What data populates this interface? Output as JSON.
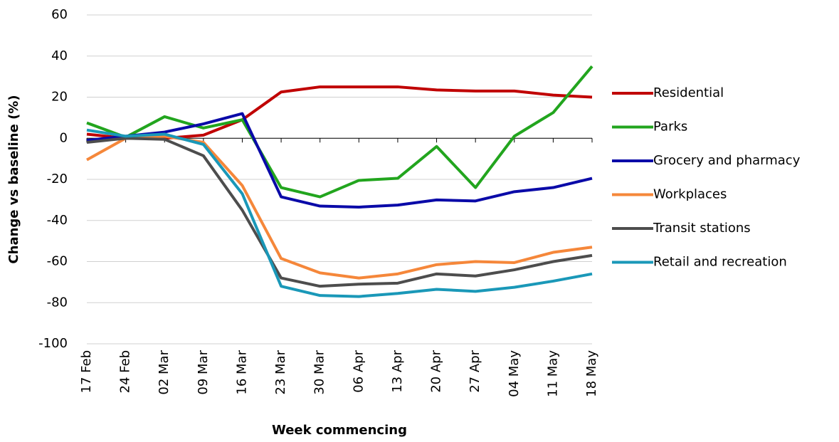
{
  "chart_data": {
    "type": "line",
    "xlabel": "Week commencing",
    "ylabel": "Change vs baseline (%)",
    "categories": [
      "17 Feb",
      "24 Feb",
      "02 Mar",
      "09 Mar",
      "16 Mar",
      "23 Mar",
      "30 Mar",
      "06 Apr",
      "13 Apr",
      "20 Apr",
      "27 Apr",
      "04 May",
      "11 May",
      "18 May"
    ],
    "series": [
      {
        "name": "Residential",
        "color": "#c00000",
        "values": [
          2,
          0,
          0,
          1.5,
          9,
          22.5,
          25,
          25,
          25,
          23.5,
          23,
          23,
          21,
          20
        ]
      },
      {
        "name": "Parks",
        "color": "#22a51e",
        "values": [
          7.5,
          0.5,
          10.5,
          5,
          9,
          -24,
          -28.5,
          -20.5,
          -19.5,
          -4,
          -24,
          1,
          12.5,
          35
        ]
      },
      {
        "name": "Grocery and pharmacy",
        "color": "#0a0aa8",
        "values": [
          -1,
          1,
          3,
          7,
          12,
          -28.5,
          -33,
          -33.5,
          -32.5,
          -30,
          -30.5,
          -26,
          -24,
          -19.5
        ]
      },
      {
        "name": "Workplaces",
        "color": "#f5873a",
        "values": [
          -10.5,
          0,
          1,
          -2,
          -23,
          -58.5,
          -65.5,
          -68,
          -66,
          -61.5,
          -60,
          -60.5,
          -55.5,
          -53
        ]
      },
      {
        "name": "Transit stations",
        "color": "#4d4d4d",
        "values": [
          -2,
          0,
          -0.5,
          -8.5,
          -35,
          -68,
          -72,
          -71,
          -70.5,
          -66,
          -67,
          -64,
          -60,
          -57
        ]
      },
      {
        "name": "Retail and recreation",
        "color": "#1a98b8",
        "values": [
          4,
          1,
          2,
          -3,
          -27,
          -72,
          -76.5,
          -77,
          -75.5,
          -73.5,
          -74.5,
          -72.5,
          -69.5,
          -66
        ]
      }
    ],
    "ylim": [
      -100,
      60
    ],
    "yticks": [
      -100,
      -80,
      -60,
      -40,
      -20,
      0,
      20,
      40,
      60
    ],
    "grid": true,
    "legend": "right"
  }
}
